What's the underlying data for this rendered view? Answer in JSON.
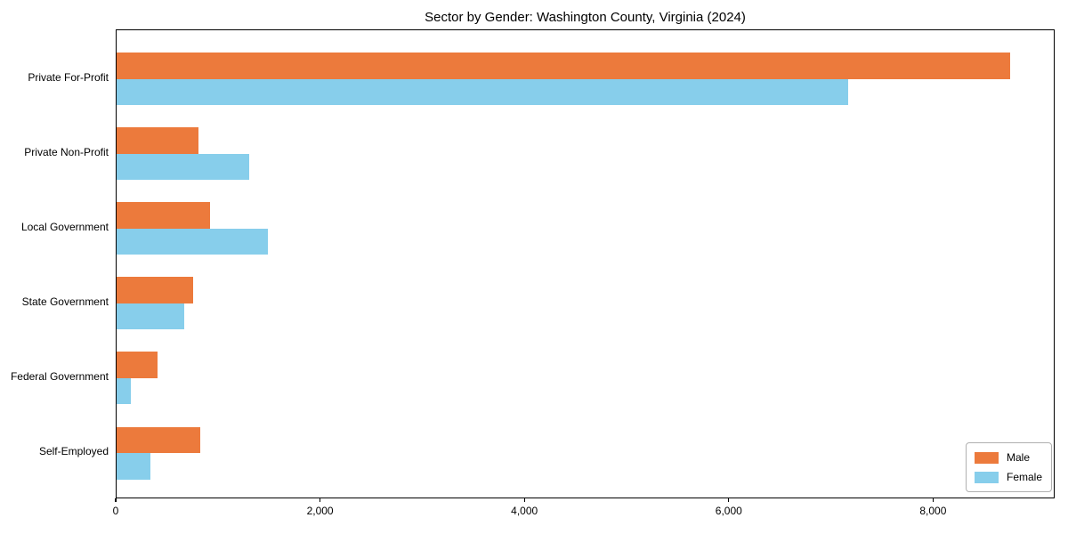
{
  "chart_data": {
    "type": "bar",
    "orientation": "horizontal",
    "title": "Sector by Gender: Washington County, Virginia (2024)",
    "categories": [
      "Private For-Profit",
      "Private Non-Profit",
      "Local Government",
      "State Government",
      "Federal Government",
      "Self-Employed"
    ],
    "series": [
      {
        "name": "Male",
        "color": "#ec7a3c",
        "values": [
          8750,
          800,
          915,
          750,
          400,
          820
        ]
      },
      {
        "name": "Female",
        "color": "#87ceeb",
        "values": [
          7160,
          1300,
          1480,
          660,
          140,
          330
        ]
      }
    ],
    "xlabel": "",
    "ylabel": "",
    "xlim": [
      0,
      9190
    ],
    "xticks": [
      0,
      2000,
      4000,
      6000,
      8000
    ],
    "xtick_labels": [
      "0",
      "2,000",
      "4,000",
      "6,000",
      "8,000"
    ],
    "legend": {
      "position": "lower right"
    },
    "grid": false,
    "background_color": "#ffffff",
    "axis_color": "#000000"
  }
}
